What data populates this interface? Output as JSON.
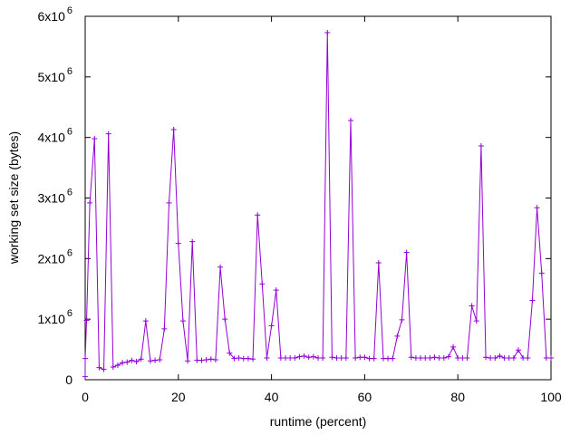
{
  "chart_data": {
    "type": "line",
    "title": "",
    "xlabel": "runtime (percent)",
    "ylabel": "working set size (bytes)",
    "xlim": [
      0,
      100
    ],
    "ylim": [
      0,
      6000000
    ],
    "x_ticks": [
      {
        "value": 0,
        "label": "0"
      },
      {
        "value": 20,
        "label": "20"
      },
      {
        "value": 40,
        "label": "40"
      },
      {
        "value": 60,
        "label": "60"
      },
      {
        "value": 80,
        "label": "80"
      },
      {
        "value": 100,
        "label": "100"
      }
    ],
    "y_ticks": [
      {
        "value": 0,
        "mantissa": "0",
        "exponent": ""
      },
      {
        "value": 1000000,
        "mantissa": "1x10",
        "exponent": "6"
      },
      {
        "value": 2000000,
        "mantissa": "2x10",
        "exponent": "6"
      },
      {
        "value": 3000000,
        "mantissa": "3x10",
        "exponent": "6"
      },
      {
        "value": 4000000,
        "mantissa": "4x10",
        "exponent": "6"
      },
      {
        "value": 5000000,
        "mantissa": "5x10",
        "exponent": "6"
      },
      {
        "value": 6000000,
        "mantissa": "6x10",
        "exponent": "6"
      }
    ],
    "grid": false,
    "marker": "plus",
    "series": [
      {
        "color": "#9400d3",
        "points": [
          [
            0,
            50000
          ],
          [
            0,
            350000
          ],
          [
            0.3,
            980000
          ],
          [
            1,
            2920000
          ],
          [
            2,
            3980000
          ],
          [
            3,
            200000
          ],
          [
            4,
            170000
          ],
          [
            5,
            4060000
          ],
          [
            6,
            210000
          ],
          [
            7,
            240000
          ],
          [
            8,
            280000
          ],
          [
            9,
            290000
          ],
          [
            10,
            320000
          ],
          [
            11,
            300000
          ],
          [
            12,
            340000
          ],
          [
            13,
            970000
          ],
          [
            14,
            310000
          ],
          [
            15,
            320000
          ],
          [
            16,
            330000
          ],
          [
            17,
            840000
          ],
          [
            18,
            2920000
          ],
          [
            19,
            4130000
          ],
          [
            20,
            2250000
          ],
          [
            21,
            970000
          ],
          [
            22,
            310000
          ],
          [
            23,
            2280000
          ],
          [
            24,
            320000
          ],
          [
            25,
            320000
          ],
          [
            26,
            330000
          ],
          [
            27,
            340000
          ],
          [
            28,
            330000
          ],
          [
            29,
            1860000
          ],
          [
            30,
            1000000
          ],
          [
            31,
            440000
          ],
          [
            32,
            350000
          ],
          [
            33,
            360000
          ],
          [
            34,
            350000
          ],
          [
            35,
            350000
          ],
          [
            36,
            340000
          ],
          [
            37,
            2720000
          ],
          [
            38,
            1580000
          ],
          [
            39,
            360000
          ],
          [
            40,
            890000
          ],
          [
            41,
            1480000
          ],
          [
            42,
            360000
          ],
          [
            43,
            360000
          ],
          [
            44,
            360000
          ],
          [
            45,
            360000
          ],
          [
            46,
            380000
          ],
          [
            47,
            390000
          ],
          [
            48,
            370000
          ],
          [
            49,
            380000
          ],
          [
            50,
            360000
          ],
          [
            51,
            360000
          ],
          [
            52,
            5730000
          ],
          [
            53,
            370000
          ],
          [
            54,
            360000
          ],
          [
            55,
            360000
          ],
          [
            56,
            360000
          ],
          [
            57,
            4280000
          ],
          [
            58,
            360000
          ],
          [
            59,
            370000
          ],
          [
            60,
            370000
          ],
          [
            61,
            350000
          ],
          [
            62,
            350000
          ],
          [
            63,
            1930000
          ],
          [
            64,
            350000
          ],
          [
            65,
            350000
          ],
          [
            66,
            350000
          ],
          [
            67,
            720000
          ],
          [
            68,
            990000
          ],
          [
            69,
            2100000
          ],
          [
            70,
            370000
          ],
          [
            71,
            360000
          ],
          [
            72,
            360000
          ],
          [
            73,
            360000
          ],
          [
            74,
            360000
          ],
          [
            75,
            370000
          ],
          [
            76,
            360000
          ],
          [
            77,
            360000
          ],
          [
            78,
            380000
          ],
          [
            79,
            540000
          ],
          [
            80,
            360000
          ],
          [
            81,
            360000
          ],
          [
            82,
            360000
          ],
          [
            83,
            1220000
          ],
          [
            84,
            970000
          ],
          [
            85,
            3860000
          ],
          [
            86,
            370000
          ],
          [
            87,
            360000
          ],
          [
            88,
            360000
          ],
          [
            89,
            390000
          ],
          [
            90,
            360000
          ],
          [
            91,
            360000
          ],
          [
            92,
            360000
          ],
          [
            93,
            490000
          ],
          [
            94,
            360000
          ],
          [
            95,
            360000
          ],
          [
            96,
            1310000
          ],
          [
            97,
            2840000
          ],
          [
            98,
            1760000
          ],
          [
            99,
            360000
          ],
          [
            100,
            360000
          ]
        ]
      }
    ]
  }
}
